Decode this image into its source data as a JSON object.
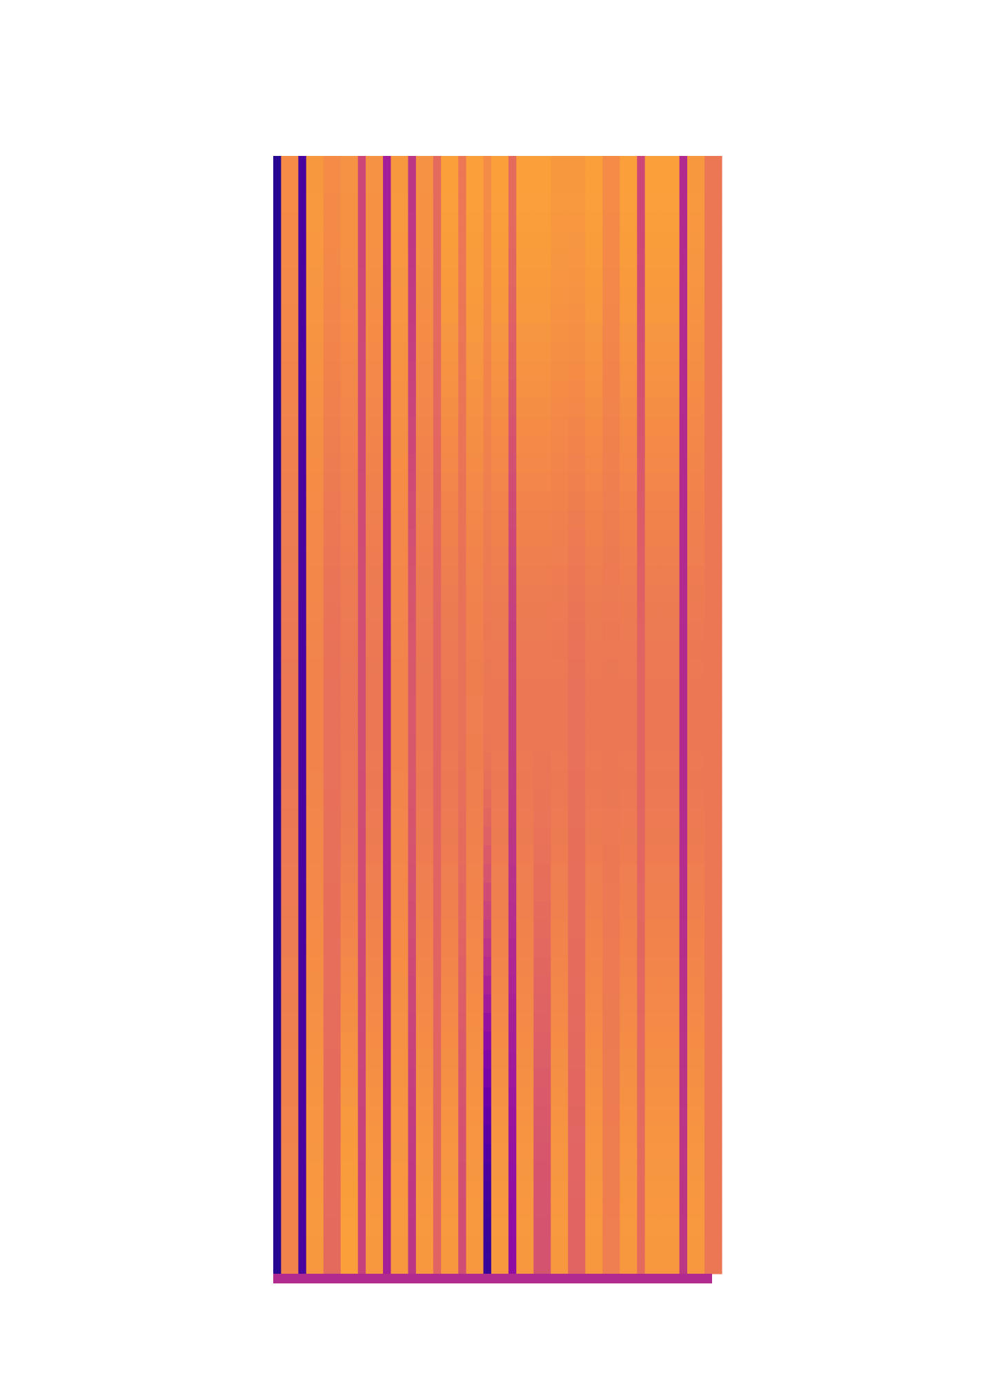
{
  "chart_data": {
    "type": "heatmap",
    "title": "",
    "xlabel": "",
    "ylabel": "",
    "colormap": "plasma",
    "grid": false,
    "legend": "none",
    "value_range": [
      0,
      1
    ],
    "columns": [
      {
        "top": 0.05,
        "mid": 0.05,
        "bottom": 0.05
      },
      {
        "top": 0.72,
        "mid": 0.66,
        "bottom": 0.7
      },
      {
        "top": 0.12,
        "mid": 0.12,
        "bottom": 0.12
      },
      {
        "top": 0.76,
        "mid": 0.7,
        "bottom": 0.76
      },
      {
        "top": 0.72,
        "mid": 0.64,
        "bottom": 0.62
      },
      {
        "top": 0.74,
        "mid": 0.66,
        "bottom": 0.78
      },
      {
        "top": 0.5,
        "mid": 0.52,
        "bottom": 0.48
      },
      {
        "top": 0.74,
        "mid": 0.66,
        "bottom": 0.76
      },
      {
        "top": 0.36,
        "mid": 0.36,
        "bottom": 0.36
      },
      {
        "top": 0.76,
        "mid": 0.7,
        "bottom": 0.76
      },
      {
        "top": 0.44,
        "mid": 0.56,
        "bottom": 0.44
      },
      {
        "top": 0.74,
        "mid": 0.66,
        "bottom": 0.76
      },
      {
        "top": 0.62,
        "mid": 0.6,
        "bottom": 0.6
      },
      {
        "top": 0.78,
        "mid": 0.66,
        "bottom": 0.76
      },
      {
        "top": 0.66,
        "mid": 0.64,
        "bottom": 0.52
      },
      {
        "top": 0.78,
        "mid": 0.68,
        "bottom": 0.76
      },
      {
        "top": 0.72,
        "mid": 0.66,
        "bottom": 0.08
      },
      {
        "top": 0.78,
        "mid": 0.66,
        "bottom": 0.76
      },
      {
        "top": 0.62,
        "mid": 0.46,
        "bottom": 0.3
      },
      {
        "top": 0.78,
        "mid": 0.66,
        "bottom": 0.76
      },
      {
        "top": 0.78,
        "mid": 0.66,
        "bottom": 0.54
      },
      {
        "top": 0.76,
        "mid": 0.66,
        "bottom": 0.76
      },
      {
        "top": 0.76,
        "mid": 0.64,
        "bottom": 0.6
      },
      {
        "top": 0.78,
        "mid": 0.66,
        "bottom": 0.76
      },
      {
        "top": 0.72,
        "mid": 0.66,
        "bottom": 0.68
      },
      {
        "top": 0.78,
        "mid": 0.66,
        "bottom": 0.76
      },
      {
        "top": 0.5,
        "mid": 0.6,
        "bottom": 0.62
      },
      {
        "top": 0.78,
        "mid": 0.66,
        "bottom": 0.76
      },
      {
        "top": 0.78,
        "mid": 0.66,
        "bottom": 0.76
      },
      {
        "top": 0.4,
        "mid": 0.4,
        "bottom": 0.44
      },
      {
        "top": 0.76,
        "mid": 0.66,
        "bottom": 0.76
      },
      {
        "top": 0.66,
        "mid": 0.66,
        "bottom": 0.66
      }
    ],
    "bottom_strip_value": 0.4
  }
}
